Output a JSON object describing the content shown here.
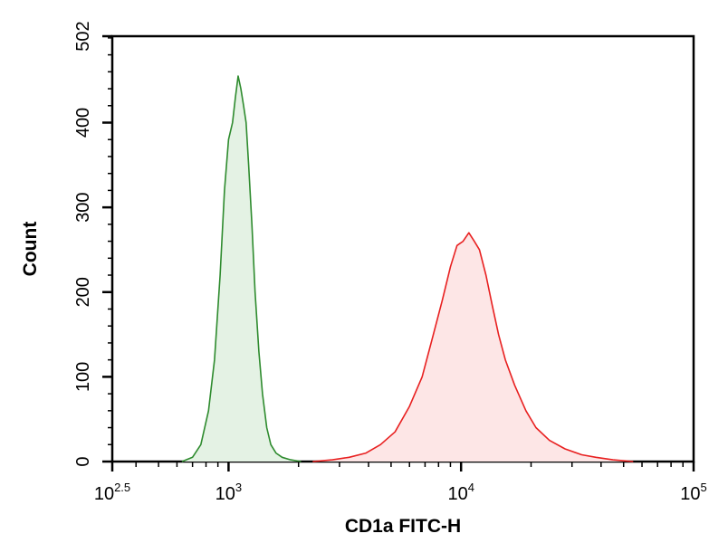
{
  "chart_data": {
    "type": "area",
    "title": "",
    "xlabel": "CD1a FITC-H",
    "ylabel": "Count",
    "x_scale": "log10",
    "xlim": [
      316.2,
      100000
    ],
    "ylim": [
      0,
      502
    ],
    "grid": false,
    "x_ticks": [
      {
        "value": 316.2,
        "base": "10",
        "exp": "2.5"
      },
      {
        "value": 1000,
        "base": "10",
        "exp": "3"
      },
      {
        "value": 10000,
        "base": "10",
        "exp": "4"
      },
      {
        "value": 100000,
        "base": "10",
        "exp": "5"
      }
    ],
    "y_ticks": [
      {
        "value": 0,
        "label": "0"
      },
      {
        "value": 100,
        "label": "100"
      },
      {
        "value": 200,
        "label": "200"
      },
      {
        "value": 300,
        "label": "300"
      },
      {
        "value": 400,
        "label": "400"
      },
      {
        "value": 502,
        "label": "502"
      }
    ],
    "series": [
      {
        "color": "#2e8b2e",
        "fill": "#e4f2e4",
        "x": [
          630,
          700,
          760,
          820,
          870,
          920,
          960,
          1000,
          1040,
          1070,
          1100,
          1130,
          1160,
          1190,
          1220,
          1260,
          1300,
          1350,
          1400,
          1460,
          1520,
          1600,
          1700,
          1850,
          2050
        ],
        "y": [
          0,
          5,
          20,
          60,
          120,
          220,
          320,
          380,
          400,
          430,
          455,
          440,
          420,
          400,
          350,
          280,
          200,
          130,
          80,
          40,
          20,
          10,
          5,
          2,
          0
        ]
      },
      {
        "color": "#e82020",
        "fill": "#fde6e6",
        "x": [
          2300,
          2800,
          3300,
          3900,
          4500,
          5200,
          6000,
          6800,
          7600,
          8300,
          9000,
          9600,
          10200,
          10800,
          11400,
          12000,
          12800,
          13600,
          14500,
          15500,
          17000,
          19000,
          21000,
          24000,
          28000,
          33000,
          38000,
          45000,
          55000
        ],
        "y": [
          0,
          2,
          5,
          10,
          20,
          35,
          65,
          100,
          150,
          190,
          230,
          255,
          260,
          270,
          260,
          250,
          220,
          185,
          150,
          120,
          90,
          60,
          40,
          25,
          15,
          8,
          5,
          2,
          0
        ]
      }
    ]
  }
}
